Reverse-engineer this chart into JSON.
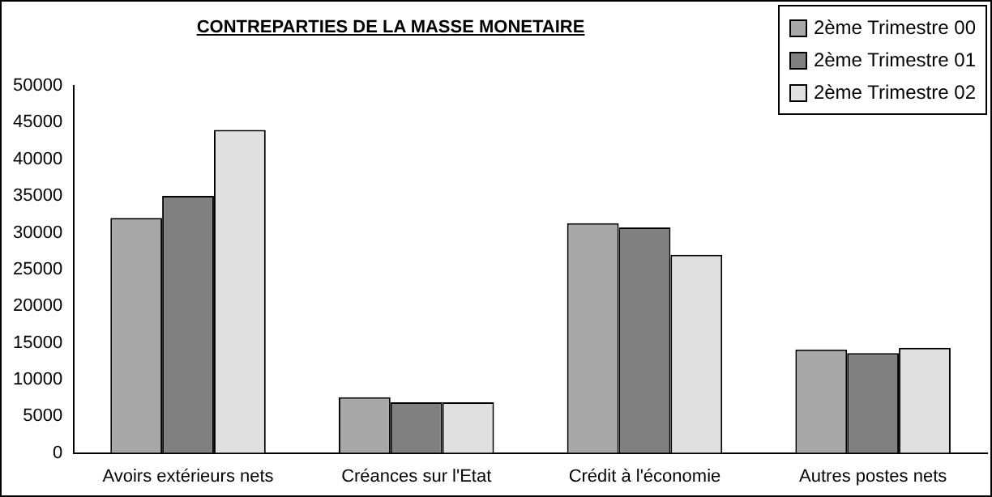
{
  "chart_data": {
    "type": "bar",
    "title": "CONTREPARTIES DE LA MASSE MONETAIRE",
    "categories": [
      "Avoirs extérieurs nets",
      "Créances sur l'Etat",
      "Crédit à l'économie",
      "Autres postes nets"
    ],
    "series": [
      {
        "name": "2ème Trimestre 00",
        "color": "#a8a8a8",
        "values": [
          32000,
          7600,
          31300,
          14100
        ]
      },
      {
        "name": "2ème Trimestre 01",
        "color": "#808080",
        "values": [
          35000,
          6900,
          30700,
          13600
        ]
      },
      {
        "name": "2ème Trimestre 02",
        "color": "#e0e0e0",
        "values": [
          44000,
          6900,
          27000,
          14300
        ]
      }
    ],
    "ylim": [
      0,
      50000
    ],
    "yticks": [
      0,
      5000,
      10000,
      15000,
      20000,
      25000,
      30000,
      35000,
      40000,
      45000,
      50000
    ],
    "grid": false,
    "legend": "top right"
  }
}
